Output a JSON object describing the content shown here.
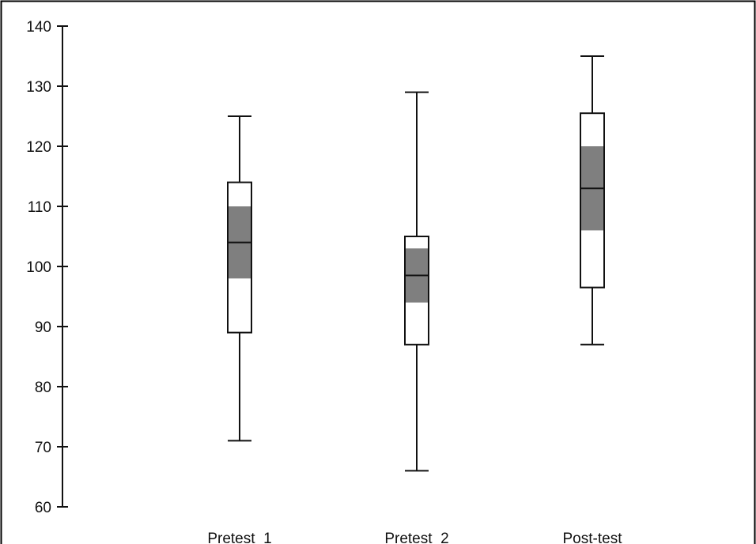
{
  "chart_data": {
    "type": "boxplot",
    "categories": [
      "Pretest  1",
      "Pretest  2",
      "Post-test"
    ],
    "ylim": [
      60,
      140
    ],
    "yticks": [
      60,
      70,
      80,
      90,
      100,
      110,
      120,
      130,
      140
    ],
    "grid": false,
    "colors": {
      "notch_fill": "#7f7f7f",
      "box_fill": "#ffffff",
      "line": "#111111",
      "frame": "#000000"
    },
    "boxes": [
      {
        "category": "Pretest  1",
        "min": 71,
        "q1": 89,
        "notch_low": 98,
        "median": 104,
        "notch_high": 110,
        "q3": 114,
        "max": 125
      },
      {
        "category": "Pretest  2",
        "min": 66,
        "q1": 87,
        "notch_low": 94,
        "median": 98.5,
        "notch_high": 103,
        "q3": 105,
        "max": 129
      },
      {
        "category": "Post-test",
        "min": 87,
        "q1": 96.5,
        "notch_low": 106,
        "median": 113,
        "notch_high": 120,
        "q3": 125.5,
        "max": 135
      }
    ]
  }
}
